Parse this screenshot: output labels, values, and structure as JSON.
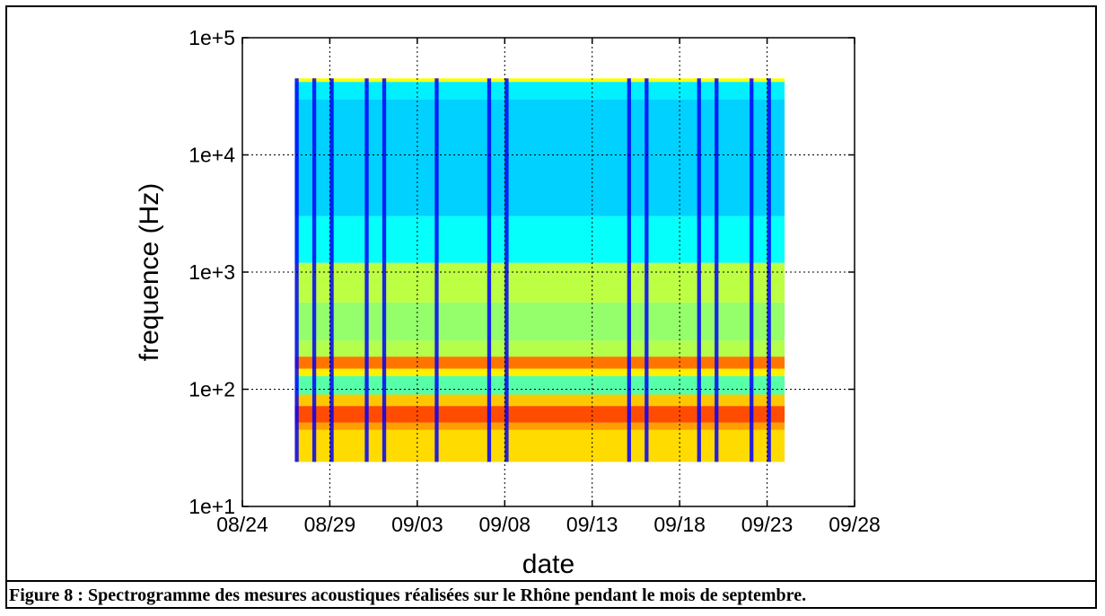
{
  "caption": "Figure 8 : Spectrogramme des mesures acoustiques réalisées sur le Rhône pendant le mois de septembre.",
  "chart_data": {
    "type": "heatmap",
    "title": "",
    "xlabel": "date",
    "ylabel": "frequence (Hz)",
    "x_ticks": [
      "08/24",
      "08/29",
      "09/03",
      "09/08",
      "09/13",
      "09/18",
      "09/23",
      "09/28"
    ],
    "y_ticks": [
      "1e+1",
      "1e+2",
      "1e+3",
      "1e+4",
      "1e+5"
    ],
    "y_scale": "log",
    "xlim": [
      "08/24",
      "09/28"
    ],
    "ylim": [
      10,
      100000
    ],
    "grid": "dotted",
    "colormap": "jet",
    "data_extent": {
      "x": [
        "08/27",
        "09/24"
      ],
      "y_hz": [
        24,
        45000
      ]
    },
    "frequency_bands": [
      {
        "from_hz": 24,
        "to_hz": 45,
        "level": 0.66
      },
      {
        "from_hz": 45,
        "to_hz": 52,
        "level": 0.72
      },
      {
        "from_hz": 52,
        "to_hz": 72,
        "level": 0.8
      },
      {
        "from_hz": 72,
        "to_hz": 90,
        "level": 0.68
      },
      {
        "from_hz": 90,
        "to_hz": 130,
        "level": 0.46
      },
      {
        "from_hz": 130,
        "to_hz": 150,
        "level": 0.64
      },
      {
        "from_hz": 150,
        "to_hz": 190,
        "level": 0.76
      },
      {
        "from_hz": 190,
        "to_hz": 260,
        "level": 0.55
      },
      {
        "from_hz": 260,
        "to_hz": 550,
        "level": 0.52
      },
      {
        "from_hz": 550,
        "to_hz": 1200,
        "level": 0.56
      },
      {
        "from_hz": 1200,
        "to_hz": 3000,
        "level": 0.38
      },
      {
        "from_hz": 3000,
        "to_hz": 30000,
        "level": 0.33
      },
      {
        "from_hz": 30000,
        "to_hz": 42000,
        "level": 0.36
      },
      {
        "from_hz": 42000,
        "to_hz": 45000,
        "level": 0.62
      }
    ],
    "low_level_dates": [
      "08/27",
      "08/28",
      "08/29",
      "08/31",
      "09/01",
      "09/04",
      "09/07",
      "09/08",
      "09/15",
      "09/16",
      "09/19",
      "09/20",
      "09/22",
      "09/23"
    ],
    "colors": {
      "jet_low": "#00008f",
      "jet_high": "#800000"
    }
  }
}
